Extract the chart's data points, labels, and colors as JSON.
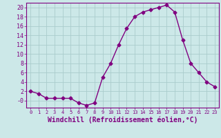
{
  "x": [
    0,
    1,
    2,
    3,
    4,
    5,
    6,
    7,
    8,
    9,
    10,
    11,
    12,
    13,
    14,
    15,
    16,
    17,
    18,
    19,
    20,
    21,
    22,
    23
  ],
  "y": [
    2,
    1.5,
    0.5,
    0.5,
    0.5,
    0.5,
    -0.5,
    -1,
    -0.5,
    5,
    8,
    12,
    15.5,
    18,
    19,
    19.5,
    20,
    20.5,
    19,
    13,
    8,
    6,
    4,
    3
  ],
  "line_color": "#800080",
  "marker": "D",
  "marker_size": 2.5,
  "bg_color": "#cce8e8",
  "grid_color": "#aacccc",
  "xlabel": "Windchill (Refroidissement éolien,°C)",
  "xtick_labels": [
    "0",
    "1",
    "2",
    "3",
    "4",
    "5",
    "6",
    "7",
    "8",
    "9",
    "10",
    "11",
    "12",
    "13",
    "14",
    "15",
    "16",
    "17",
    "18",
    "19",
    "20",
    "21",
    "22",
    "23"
  ],
  "ytick_values": [
    0,
    2,
    4,
    6,
    8,
    10,
    12,
    14,
    16,
    18,
    20
  ],
  "ytick_labels": [
    "-0",
    "2",
    "4",
    "6",
    "8",
    "10",
    "12",
    "14",
    "16",
    "18",
    "20"
  ],
  "ylim": [
    -1.5,
    21
  ],
  "xlim": [
    -0.5,
    23.5
  ],
  "linewidth": 1.0
}
